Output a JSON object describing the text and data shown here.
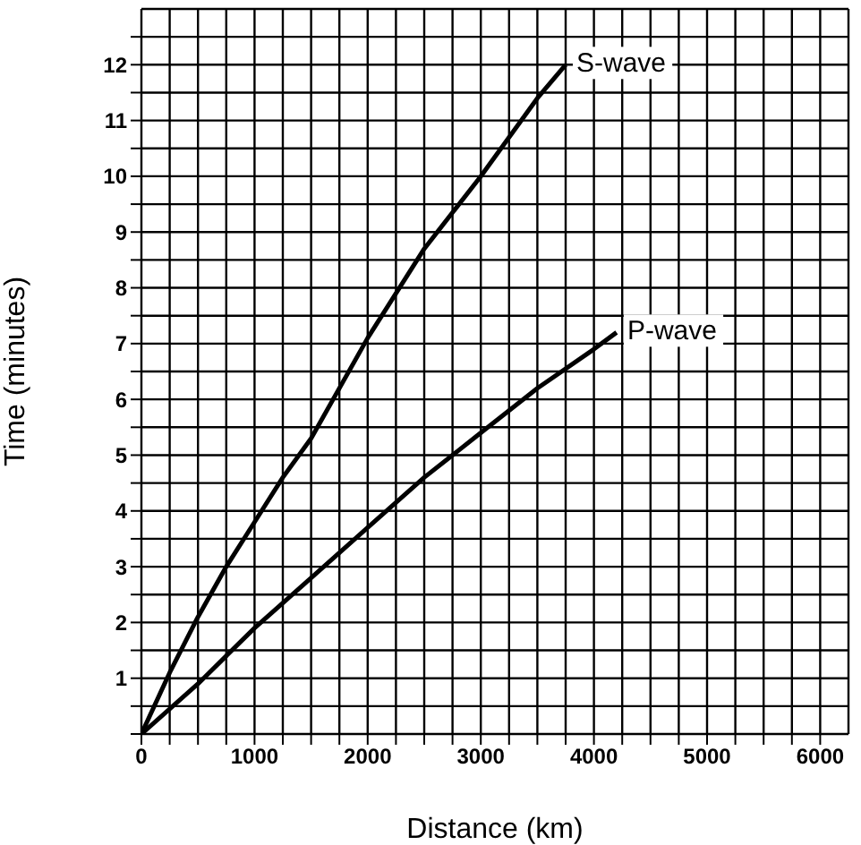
{
  "chart_data": {
    "type": "line",
    "xlabel": "Distance (km)",
    "ylabel": "Time (minutes)",
    "xlim": [
      0,
      6250
    ],
    "ylim": [
      0,
      13
    ],
    "xticks": [
      0,
      {
        "value": 250,
        "label": null
      },
      {
        "value": 500,
        "label": null
      },
      {
        "value": 750,
        "label": null
      },
      1000,
      {
        "value": 1250,
        "label": null
      },
      {
        "value": 1500,
        "label": null
      },
      {
        "value": 1750,
        "label": null
      },
      2000,
      {
        "value": 2250,
        "label": null
      },
      {
        "value": 2500,
        "label": null
      },
      {
        "value": 2750,
        "label": null
      },
      3000,
      {
        "value": 3250,
        "label": null
      },
      {
        "value": 3500,
        "label": null
      },
      {
        "value": 3750,
        "label": null
      },
      4000,
      {
        "value": 4250,
        "label": null
      },
      {
        "value": 4500,
        "label": null
      },
      {
        "value": 4750,
        "label": null
      },
      5000,
      {
        "value": 5250,
        "label": null
      },
      {
        "value": 5500,
        "label": null
      },
      {
        "value": 5750,
        "label": null
      },
      6000
    ],
    "yticks": [
      {
        "value": 0,
        "label": null
      },
      {
        "value": 0.5,
        "label": null
      },
      1,
      {
        "value": 1.5,
        "label": null
      },
      2,
      {
        "value": 2.5,
        "label": null
      },
      3,
      {
        "value": 3.5,
        "label": null
      },
      4,
      {
        "value": 4.5,
        "label": null
      },
      5,
      {
        "value": 5.5,
        "label": null
      },
      6,
      {
        "value": 6.5,
        "label": null
      },
      7,
      {
        "value": 7.5,
        "label": null
      },
      8,
      {
        "value": 8.5,
        "label": null
      },
      9,
      {
        "value": 9.5,
        "label": null
      },
      10,
      {
        "value": 10.5,
        "label": null
      },
      11,
      {
        "value": 11.5,
        "label": null
      },
      12,
      {
        "value": 12.5,
        "label": null
      }
    ],
    "grid": true,
    "marker": "none",
    "line_style": "solid",
    "series": [
      {
        "name": "S-wave",
        "color": "#000000",
        "x": [
          0,
          250,
          500,
          750,
          1000,
          1250,
          1500,
          2000,
          2500,
          3000,
          3500,
          3750
        ],
        "values": [
          0,
          1.1,
          2.1,
          3,
          3.8,
          4.6,
          5.3,
          7.1,
          8.7,
          10,
          11.4,
          12
        ]
      },
      {
        "name": "P-wave",
        "color": "#000000",
        "x": [
          0,
          500,
          1000,
          1500,
          2000,
          2500,
          3000,
          3500,
          4000,
          4200
        ],
        "values": [
          0,
          0.9,
          1.9,
          2.8,
          3.7,
          4.6,
          5.4,
          6.2,
          6.9,
          7.2
        ]
      }
    ]
  }
}
